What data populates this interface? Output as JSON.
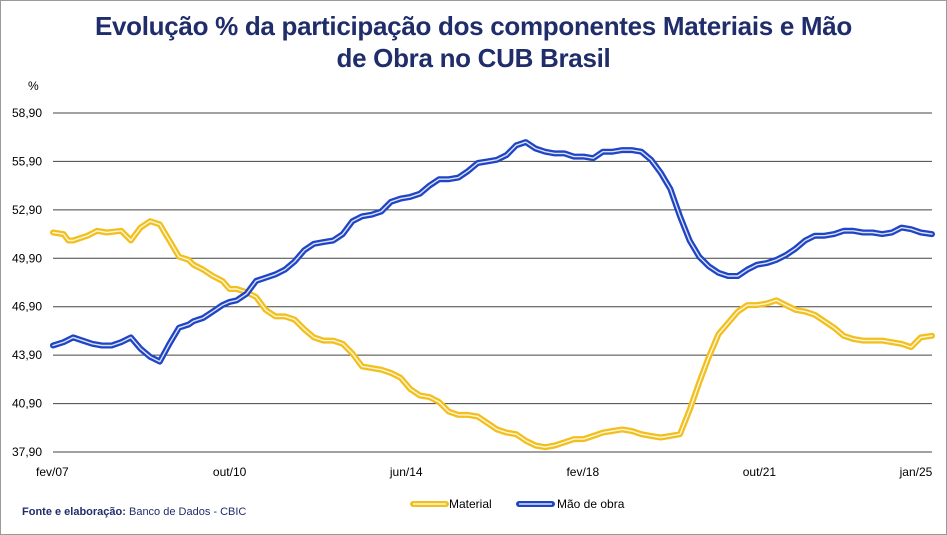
{
  "title_line1": "Evolução % da participação dos componentes Materiais e Mão",
  "title_line2": "de Obra no CUB Brasil",
  "source_label": "Fonte e elaboração:",
  "source_value": "Banco de Dados - CBIC",
  "chart_data": {
    "type": "line",
    "title": "Evolução % da participação dos componentes Materiais e Mão de Obra no CUB Brasil",
    "ylabel": "%",
    "xlabel": "",
    "ylim": [
      37.9,
      58.9
    ],
    "yticks": [
      "58,90",
      "55,90",
      "52,90",
      "49,90",
      "46,90",
      "43,90",
      "40,90",
      "37,90"
    ],
    "ytick_values": [
      58.9,
      55.9,
      52.9,
      49.9,
      46.9,
      43.9,
      40.9,
      37.9
    ],
    "xticks": [
      "fev/07",
      "out/10",
      "jun/14",
      "fev/18",
      "out/21",
      "jan/25"
    ],
    "xtick_values": [
      2007.083,
      2010.75,
      2014.417,
      2018.083,
      2021.75,
      2025.0
    ],
    "xlim": [
      2007.083,
      2025.333
    ],
    "grid": true,
    "legend_position": "bottom-center",
    "series": [
      {
        "name": "Material",
        "color": "#f2c01e",
        "x": [
          2007.083,
          2007.3,
          2007.4,
          2007.5,
          2007.8,
          2008.0,
          2008.2,
          2008.5,
          2008.7,
          2008.9,
          2009.1,
          2009.3,
          2009.5,
          2009.7,
          2009.9,
          2010.0,
          2010.2,
          2010.4,
          2010.6,
          2010.75,
          2010.9,
          2011.1,
          2011.3,
          2011.5,
          2011.7,
          2011.9,
          2012.1,
          2012.3,
          2012.5,
          2012.7,
          2012.9,
          2013.1,
          2013.3,
          2013.5,
          2013.7,
          2013.9,
          2014.1,
          2014.3,
          2014.5,
          2014.7,
          2014.9,
          2015.1,
          2015.3,
          2015.5,
          2015.7,
          2015.9,
          2016.1,
          2016.3,
          2016.5,
          2016.7,
          2016.9,
          2017.1,
          2017.3,
          2017.5,
          2017.7,
          2017.9,
          2018.1,
          2018.3,
          2018.5,
          2018.7,
          2018.9,
          2019.1,
          2019.3,
          2019.5,
          2019.7,
          2019.9,
          2020.1,
          2020.3,
          2020.5,
          2020.7,
          2020.9,
          2021.1,
          2021.3,
          2021.5,
          2021.7,
          2021.9,
          2022.1,
          2022.3,
          2022.5,
          2022.7,
          2022.9,
          2023.1,
          2023.3,
          2023.5,
          2023.7,
          2023.9,
          2024.1,
          2024.3,
          2024.5,
          2024.7,
          2024.9,
          2025.1,
          2025.333
        ],
        "values": [
          51.5,
          51.4,
          51.0,
          51.0,
          51.3,
          51.6,
          51.5,
          51.6,
          51.0,
          51.8,
          52.2,
          52.0,
          51.0,
          50.0,
          49.8,
          49.5,
          49.2,
          48.8,
          48.5,
          48.0,
          48.0,
          47.8,
          47.5,
          46.7,
          46.3,
          46.3,
          46.1,
          45.5,
          45.0,
          44.8,
          44.8,
          44.6,
          44.0,
          43.2,
          43.1,
          43.0,
          42.8,
          42.5,
          41.8,
          41.4,
          41.3,
          41.0,
          40.4,
          40.2,
          40.2,
          40.1,
          39.7,
          39.3,
          39.1,
          39.0,
          38.6,
          38.3,
          38.2,
          38.3,
          38.5,
          38.7,
          38.7,
          38.9,
          39.1,
          39.2,
          39.3,
          39.2,
          39.0,
          38.9,
          38.8,
          38.9,
          39.0,
          40.5,
          42.2,
          43.8,
          45.2,
          45.9,
          46.6,
          47.0,
          47.0,
          47.1,
          47.3,
          47.0,
          46.7,
          46.6,
          46.4,
          46.0,
          45.6,
          45.1,
          44.9,
          44.8,
          44.8,
          44.8,
          44.7,
          44.6,
          44.4,
          45.0,
          45.1
        ]
      },
      {
        "name": "Mão de obra",
        "color": "#1f45c4",
        "x": [
          2007.083,
          2007.3,
          2007.5,
          2007.7,
          2007.9,
          2008.1,
          2008.3,
          2008.5,
          2008.7,
          2008.9,
          2009.1,
          2009.3,
          2009.5,
          2009.7,
          2009.9,
          2010.0,
          2010.2,
          2010.4,
          2010.6,
          2010.75,
          2010.9,
          2011.1,
          2011.3,
          2011.5,
          2011.7,
          2011.9,
          2012.1,
          2012.3,
          2012.5,
          2012.7,
          2012.9,
          2013.1,
          2013.3,
          2013.5,
          2013.7,
          2013.9,
          2014.1,
          2014.3,
          2014.5,
          2014.7,
          2014.9,
          2015.1,
          2015.3,
          2015.5,
          2015.7,
          2015.9,
          2016.1,
          2016.3,
          2016.5,
          2016.7,
          2016.9,
          2017.1,
          2017.3,
          2017.5,
          2017.7,
          2017.9,
          2018.1,
          2018.3,
          2018.5,
          2018.7,
          2018.9,
          2019.1,
          2019.3,
          2019.5,
          2019.7,
          2019.9,
          2020.1,
          2020.3,
          2020.5,
          2020.7,
          2020.9,
          2021.1,
          2021.3,
          2021.5,
          2021.7,
          2021.9,
          2022.1,
          2022.3,
          2022.5,
          2022.7,
          2022.9,
          2023.1,
          2023.3,
          2023.5,
          2023.7,
          2023.9,
          2024.1,
          2024.3,
          2024.5,
          2024.7,
          2024.9,
          2025.1,
          2025.333
        ],
        "values": [
          44.5,
          44.7,
          45.0,
          44.8,
          44.6,
          44.5,
          44.5,
          44.7,
          45.0,
          44.3,
          43.8,
          43.5,
          44.6,
          45.6,
          45.8,
          46.0,
          46.2,
          46.6,
          47.0,
          47.2,
          47.3,
          47.7,
          48.5,
          48.7,
          48.9,
          49.2,
          49.7,
          50.4,
          50.8,
          50.9,
          51.0,
          51.4,
          52.2,
          52.5,
          52.6,
          52.8,
          53.4,
          53.6,
          53.7,
          53.9,
          54.4,
          54.8,
          54.8,
          54.9,
          55.3,
          55.8,
          55.9,
          56.0,
          56.3,
          56.9,
          57.1,
          56.7,
          56.5,
          56.4,
          56.4,
          56.2,
          56.2,
          56.1,
          56.5,
          56.5,
          56.6,
          56.6,
          56.5,
          56.0,
          55.2,
          54.2,
          52.5,
          51.0,
          50.0,
          49.4,
          49.0,
          48.8,
          48.8,
          49.2,
          49.5,
          49.6,
          49.8,
          50.1,
          50.5,
          51.0,
          51.3,
          51.3,
          51.4,
          51.6,
          51.6,
          51.5,
          51.5,
          51.4,
          51.5,
          51.8,
          51.7,
          51.5,
          51.4
        ]
      }
    ]
  }
}
